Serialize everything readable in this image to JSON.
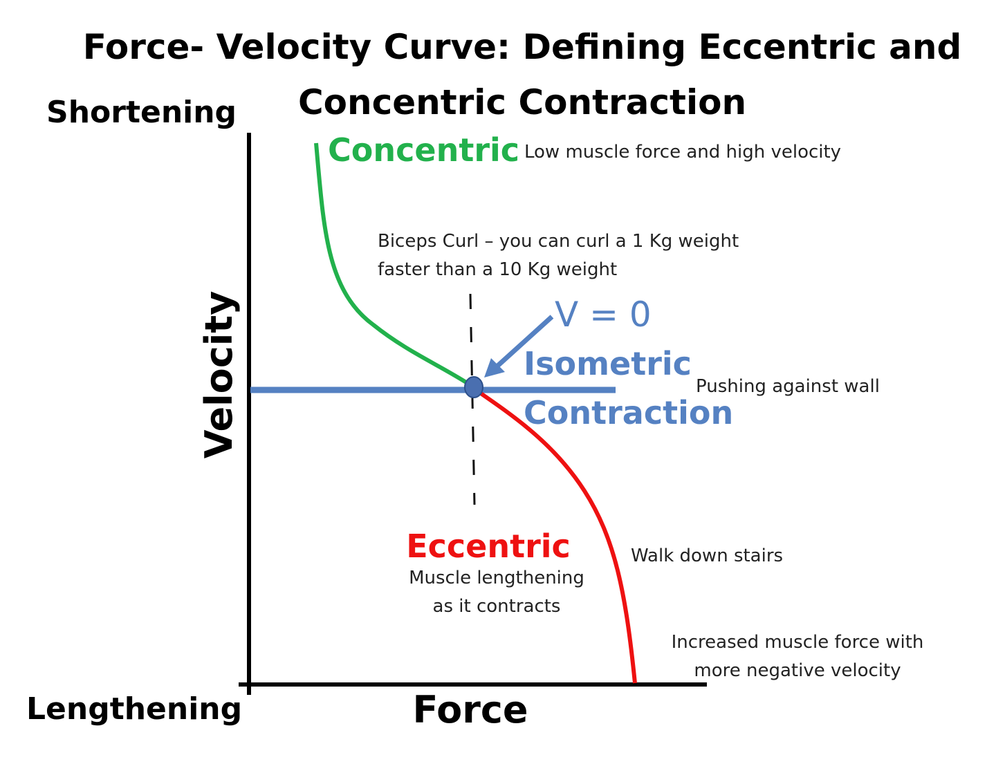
{
  "title": {
    "line1": "Force- Velocity Curve: Defining Eccentric and",
    "line2": "Concentric Contraction"
  },
  "axes": {
    "y_label": "Velocity",
    "x_label": "Force",
    "y_top": "Shortening",
    "y_bottom": "Lengthening"
  },
  "labels": {
    "concentric": "Concentric",
    "concentric_note": "Low muscle force  and high velocity",
    "biceps_line1": "Biceps Curl – you can curl a 1 Kg weight",
    "biceps_line2": "faster than a 10 Kg weight",
    "v_zero": "V = 0",
    "isometric_line1": "Isometric",
    "isometric_line2": "Contraction",
    "isometric_note": "Pushing against wall",
    "eccentric": "Eccentric",
    "eccentric_note_line1": "Muscle lengthening",
    "eccentric_note_line2": "as it contracts",
    "stairs_note": "Walk down stairs",
    "force_note_line1": "Increased muscle force with",
    "force_note_line2": "more negative velocity"
  },
  "colors": {
    "concentric": "#22b14c",
    "eccentric": "#ee1111",
    "isometric": "#5581c2",
    "axis": "#000000"
  }
}
